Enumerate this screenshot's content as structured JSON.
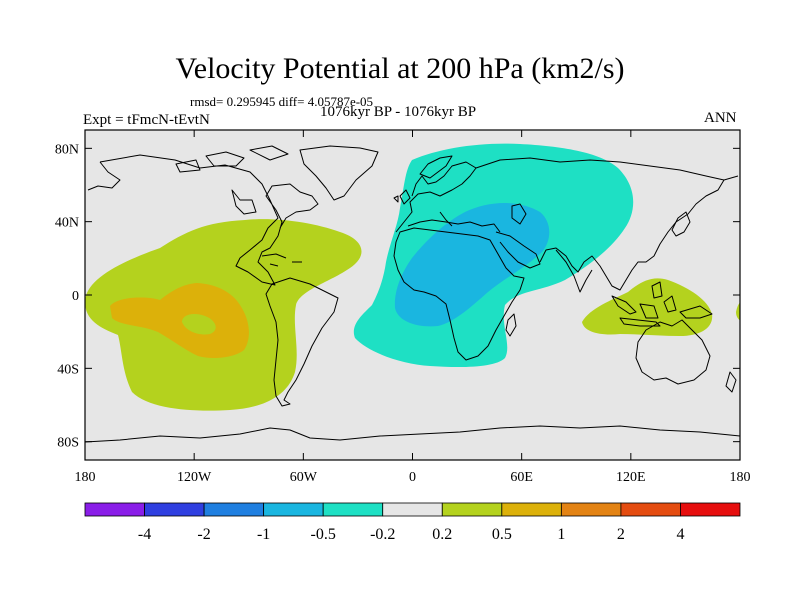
{
  "title": "Velocity Potential at 200 hPa (km2/s)",
  "stats": "rmsd= 0.295945 diff= 4.05787e-05",
  "experiment": "Expt = tFmcN-tEvtN",
  "period": "1076kyr BP - 1076kyr BP",
  "season": "ANN",
  "axes": {
    "x_ticks": [
      {
        "lon": -180,
        "label": "180"
      },
      {
        "lon": -120,
        "label": "120W"
      },
      {
        "lon": -60,
        "label": "60W"
      },
      {
        "lon": 0,
        "label": "0"
      },
      {
        "lon": 60,
        "label": "60E"
      },
      {
        "lon": 120,
        "label": "120E"
      },
      {
        "lon": 180,
        "label": "180"
      }
    ],
    "y_ticks": [
      {
        "lat": 80,
        "label": "80N"
      },
      {
        "lat": 40,
        "label": "40N"
      },
      {
        "lat": 0,
        "label": "0"
      },
      {
        "lat": -40,
        "label": "40S"
      },
      {
        "lat": -80,
        "label": "80S"
      }
    ]
  },
  "colorbar": {
    "colors": [
      "#8a1ee8",
      "#2f3fe0",
      "#1f7fe0",
      "#1ab6e0",
      "#1ee0c4",
      "#e6e6e6",
      "#b4d21e",
      "#dcb10a",
      "#e38314",
      "#e44c10",
      "#e60e0e"
    ],
    "labels": [
      "-4",
      "-2",
      "-1",
      "-0.5",
      "-0.2",
      "0.2",
      "0.5",
      "1",
      "2",
      "4"
    ]
  },
  "field_colors": {
    "background": "#e6e6e6",
    "positive_02_05": "#b4d21e",
    "positive_05_1": "#dcb10a",
    "negative_02_05": "#1ee0c4",
    "negative_05_1": "#1ab6e0"
  }
}
